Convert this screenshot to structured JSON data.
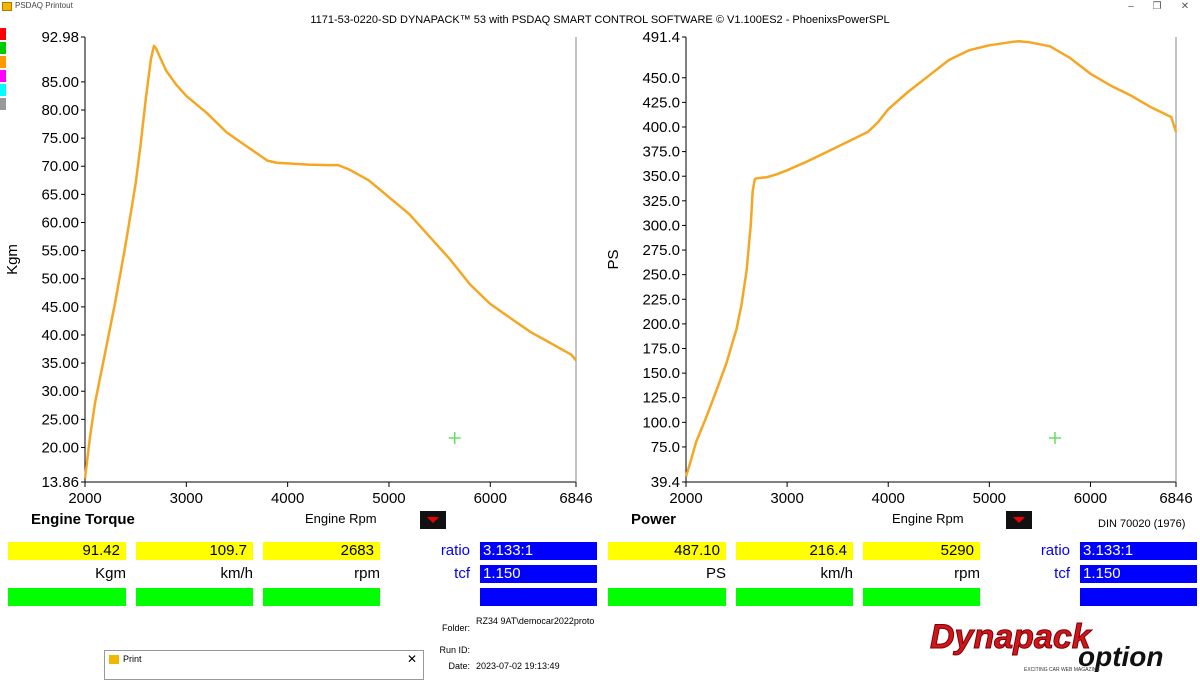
{
  "window": {
    "app_title": "PSDAQ Printout",
    "minimize": "–",
    "maximize": "❐",
    "close": "✕"
  },
  "header": {
    "title": "1171-53-0220-SD DYNAPACK™ 53 with PSDAQ SMART CONTROL SOFTWARE © V1.100ES2 - PhoenixsPowerSPL"
  },
  "swatch_colors": [
    "#ff0000",
    "#00cc00",
    "#ff9900",
    "#ff00ff",
    "#00ffff",
    "#999999"
  ],
  "chart_data": [
    {
      "type": "line",
      "title": "Engine Torque",
      "xlabel": "Engine Rpm",
      "ylabel": "Kgm",
      "xlim": [
        2000,
        6846
      ],
      "ylim": [
        13.86,
        92.98
      ],
      "xticks": [
        "2000",
        "3000",
        "4000",
        "5000",
        "6000",
        "6846"
      ],
      "yticks": [
        "13.86",
        "20.00",
        "25.00",
        "30.00",
        "35.00",
        "40.00",
        "45.00",
        "50.00",
        "55.00",
        "60.00",
        "65.00",
        "70.00",
        "75.00",
        "80.00",
        "85.00",
        "92.98"
      ],
      "grid": false,
      "color": "#f5a623",
      "series": [
        {
          "x": [
            2000,
            2050,
            2100,
            2200,
            2300,
            2400,
            2500,
            2550,
            2600,
            2650,
            2680,
            2700,
            2750,
            2800,
            2900,
            3000,
            3200,
            3400,
            3600,
            3800,
            3900,
            4000,
            4200,
            4400,
            4500,
            4600,
            4700,
            4800,
            5000,
            5200,
            5400,
            5600,
            5800,
            6000,
            6200,
            6400,
            6600,
            6800,
            6846
          ],
          "y": [
            14.5,
            22,
            28,
            37,
            46,
            56,
            67,
            74,
            82,
            89,
            91.4,
            91,
            89,
            87,
            84.5,
            82.5,
            79.5,
            76,
            73.5,
            71,
            70.6,
            70.5,
            70.3,
            70.2,
            70.2,
            69.5,
            68.5,
            67.5,
            64.5,
            61.5,
            57.5,
            53.5,
            49,
            45.5,
            43,
            40.5,
            38.5,
            36.5,
            35.5
          ]
        }
      ],
      "legend": "none"
    },
    {
      "type": "line",
      "title": "Power",
      "xlabel": "Engine Rpm",
      "ylabel": "PS",
      "xlim": [
        2000,
        6846
      ],
      "ylim": [
        39.4,
        491.4
      ],
      "xticks": [
        "2000",
        "3000",
        "4000",
        "5000",
        "6000",
        "6846"
      ],
      "yticks": [
        "39.4",
        "75.0",
        "100.0",
        "125.0",
        "150.0",
        "175.0",
        "200.0",
        "225.0",
        "250.0",
        "275.0",
        "300.0",
        "325.0",
        "350.0",
        "375.0",
        "400.0",
        "425.0",
        "450.0",
        "491.4"
      ],
      "grid": false,
      "color": "#f5a623",
      "series": [
        {
          "x": [
            2000,
            2050,
            2100,
            2200,
            2300,
            2400,
            2500,
            2550,
            2600,
            2640,
            2660,
            2680,
            2700,
            2800,
            2900,
            3000,
            3200,
            3400,
            3600,
            3800,
            3900,
            4000,
            4200,
            4400,
            4500,
            4600,
            4800,
            5000,
            5200,
            5290,
            5400,
            5600,
            5800,
            6000,
            6200,
            6400,
            6600,
            6800,
            6846
          ],
          "y": [
            45,
            62,
            80,
            105,
            132,
            160,
            195,
            220,
            255,
            300,
            335,
            347,
            348,
            349,
            352,
            356,
            365,
            375,
            385,
            395,
            405,
            418,
            436,
            452,
            460,
            468,
            478,
            483,
            486,
            487.1,
            486,
            482,
            470,
            454,
            442,
            432,
            420,
            410,
            395
          ]
        }
      ],
      "legend": "none"
    }
  ],
  "left_panel": {
    "title": "Engine Torque",
    "rpm_label": "Engine Rpm",
    "values": [
      "91.42",
      "109.7",
      "2683"
    ],
    "units": [
      "Kgm",
      "km/h",
      "rpm"
    ],
    "ratio_label": "ratio",
    "ratio_value": "3.133:1",
    "tcf_label": "tcf",
    "tcf_value": "1.150"
  },
  "right_panel": {
    "title": "Power",
    "rpm_label": "Engine Rpm",
    "values": [
      "487.10",
      "216.4",
      "5290"
    ],
    "units": [
      "PS",
      "km/h",
      "rpm"
    ],
    "ratio_label": "ratio",
    "ratio_value": "3.133:1",
    "tcf_label": "tcf",
    "tcf_value": "1.150",
    "din": "DIN 70020 (1976)"
  },
  "info": {
    "folder_label": "Folder:",
    "folder_value": "RZ34 9AT\\democar2022proto",
    "runid_label": "Run ID:",
    "runid_value": "",
    "date_label": "Date:",
    "date_value": "2023-07-02 19:13:49"
  },
  "print_dialog": {
    "title": "Print",
    "close": "✕"
  },
  "logo": {
    "text1": "Dynapack",
    "text2": "option",
    "tagline": "EXCITING CAR WEB MAGAZINE"
  }
}
